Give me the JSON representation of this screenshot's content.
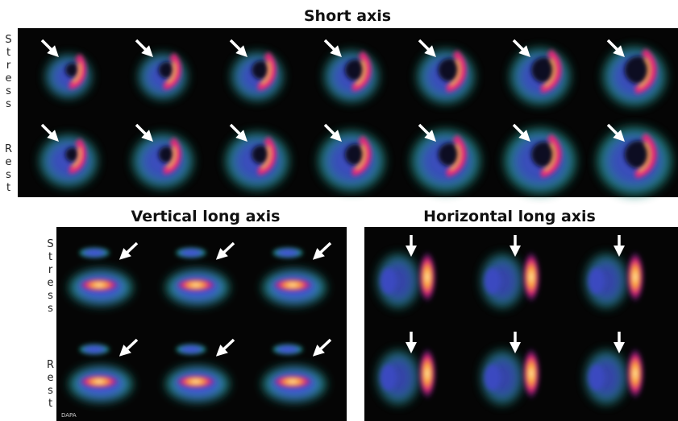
{
  "sections": [
    {
      "title": "Short axis",
      "rows": [
        {
          "label": "Stress"
        },
        {
          "label": "Rest"
        }
      ]
    },
    {
      "title": "Vertical long axis",
      "rows": [
        {
          "label": "Stress"
        },
        {
          "label": "Rest"
        }
      ]
    },
    {
      "title": "Horizontal long axis"
    }
  ],
  "watermark": "DAPA"
}
